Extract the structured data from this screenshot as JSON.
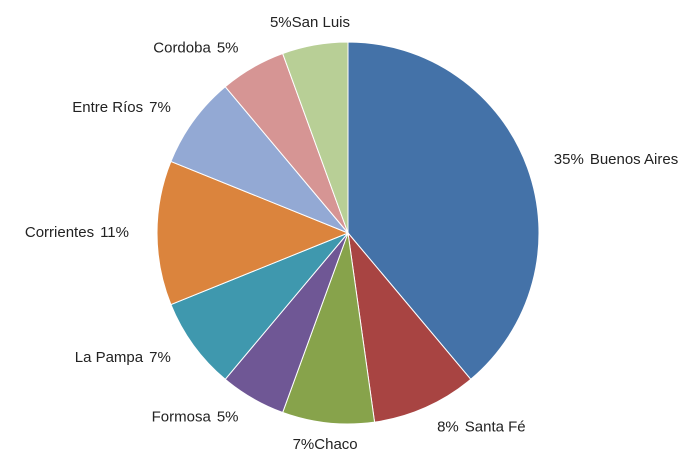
{
  "chart_data": {
    "type": "pie",
    "categories": [
      "Buenos Aires",
      "Santa Fé",
      "Chaco",
      "Formosa",
      "La Pampa",
      "Corrientes",
      "Entre Ríos",
      "Cordoba",
      "San Luis"
    ],
    "values": [
      35,
      8,
      7,
      5,
      7,
      11,
      7,
      5,
      5
    ],
    "value_labels": [
      "35%",
      "8%",
      "7%",
      "5%",
      "7%",
      "11%",
      "7%",
      "5%",
      "5%"
    ],
    "colors": [
      "#4472a8",
      "#a84442",
      "#87a34b",
      "#6f5795",
      "#3f98ae",
      "#db843d",
      "#93a9d4",
      "#d69594",
      "#b8cf96"
    ]
  }
}
